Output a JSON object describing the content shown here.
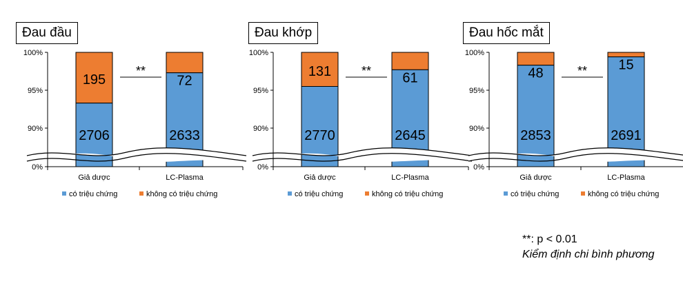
{
  "chart_data": [
    {
      "type": "bar",
      "stacked": true,
      "title": "Đau đầu",
      "categories": [
        "Giả dược",
        "LC-Plasma"
      ],
      "series": [
        {
          "name": "có triệu chứng",
          "color": "#5b9bd5",
          "values": [
            2706,
            2633
          ],
          "percent": [
            93.3,
            97.3
          ]
        },
        {
          "name": "không có triệu chứng",
          "color": "#ed7d31",
          "values": [
            195,
            72
          ],
          "percent": [
            6.7,
            2.7
          ]
        }
      ],
      "yticks": [
        "100%",
        "95%",
        "90%",
        "0%"
      ],
      "axis_break": true,
      "ylim": [
        90,
        100
      ],
      "significance": "**",
      "legend_position": "bottom"
    },
    {
      "type": "bar",
      "stacked": true,
      "title": "Đau khớp",
      "categories": [
        "Giả dược",
        "LC-Plasma"
      ],
      "series": [
        {
          "name": "có triệu chứng",
          "color": "#5b9bd5",
          "values": [
            2770,
            2645
          ],
          "percent": [
            95.5,
            97.7
          ]
        },
        {
          "name": "không có triệu chứng",
          "color": "#ed7d31",
          "values": [
            131,
            61
          ],
          "percent": [
            4.5,
            2.3
          ]
        }
      ],
      "yticks": [
        "100%",
        "95%",
        "90%",
        "0%"
      ],
      "axis_break": true,
      "ylim": [
        90,
        100
      ],
      "significance": "**",
      "legend_position": "bottom"
    },
    {
      "type": "bar",
      "stacked": true,
      "title": "Đau hốc mắt",
      "categories": [
        "Giả dược",
        "LC-Plasma"
      ],
      "series": [
        {
          "name": "có triệu chứng",
          "color": "#5b9bd5",
          "values": [
            2853,
            2691
          ],
          "percent": [
            98.3,
            99.4
          ]
        },
        {
          "name": "không có triệu chứng",
          "color": "#ed7d31",
          "values": [
            48,
            15
          ],
          "percent": [
            1.7,
            0.6
          ]
        }
      ],
      "yticks": [
        "100%",
        "95%",
        "90%",
        "0%"
      ],
      "axis_break": true,
      "ylim": [
        90,
        100
      ],
      "significance": "**",
      "legend_position": "bottom"
    }
  ],
  "footnote": {
    "line1": "**: p < 0.01",
    "line2": "Kiểm định chi bình phương"
  }
}
